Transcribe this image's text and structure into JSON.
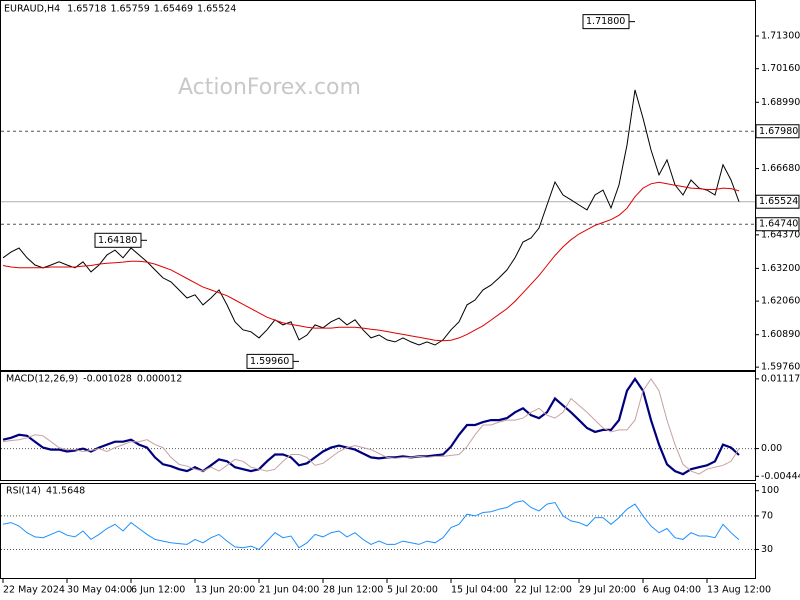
{
  "chart_data": [
    {
      "type": "line",
      "title": "EURAUD,H4",
      "ohlc": [
        1.65718,
        1.65759,
        1.65469,
        1.65524
      ],
      "watermark": "ActionForex.com",
      "xlim": [
        -0.375,
        94
      ],
      "xticks": [
        {
          "value": 0,
          "label": "22 May 2024"
        },
        {
          "value": 8,
          "label": "30 May 04:00"
        },
        {
          "value": 16,
          "label": "6 Jun 12:00"
        },
        {
          "value": 24,
          "label": "13 Jun 20:00"
        },
        {
          "value": 32,
          "label": "21 Jun 04:00"
        },
        {
          "value": 40,
          "label": "28 Jun 12:00"
        },
        {
          "value": 48,
          "label": "5 Jul 20:00"
        },
        {
          "value": 56,
          "label": "15 Jul 04:00"
        },
        {
          "value": 64,
          "label": "22 Jul 12:00"
        },
        {
          "value": 72,
          "label": "29 Jul 20:00"
        },
        {
          "value": 80,
          "label": "6 Aug 04:00"
        },
        {
          "value": 88,
          "label": "13 Aug 12:00"
        }
      ],
      "ylim": [
        1.5966,
        1.72554
      ],
      "yticks": [
        {
          "value": 1.5976,
          "label": "1.59760"
        },
        {
          "value": 1.6089,
          "label": "1.60890"
        },
        {
          "value": 1.6206,
          "label": "1.62060"
        },
        {
          "value": 1.632,
          "label": "1.63200"
        },
        {
          "value": 1.6437,
          "label": "1.64370"
        },
        {
          "value": 1.6668,
          "label": "1.66680"
        },
        {
          "value": 1.6899,
          "label": "1.68990"
        },
        {
          "value": 1.7016,
          "label": "1.70160"
        },
        {
          "value": 1.713,
          "label": "1.71300"
        }
      ],
      "levels": [
        {
          "value": 1.6798,
          "label": "1.67980",
          "style": "dashed"
        },
        {
          "value": 1.6474,
          "label": "1.64740",
          "style": "dashed"
        },
        {
          "value": 1.65524,
          "label": "1.65524",
          "style": "solid"
        }
      ],
      "annotations": [
        {
          "value": 1.718,
          "label": "1.71800"
        },
        {
          "value": 1.6418,
          "label": "1.64180"
        },
        {
          "value": 1.5996,
          "label": "1.59960"
        }
      ],
      "series": [
        {
          "color": "#000000",
          "values": [
            1.6357,
            1.6377,
            1.6391,
            1.6357,
            1.6332,
            1.6322,
            1.6332,
            1.6343,
            1.6332,
            1.6322,
            1.6343,
            1.6308,
            1.6332,
            1.6367,
            1.6384,
            1.6357,
            1.6391,
            1.6367,
            1.6343,
            1.6315,
            1.6287,
            1.6273,
            1.6245,
            1.6217,
            1.6228,
            1.6193,
            1.6217,
            1.6245,
            1.6193,
            1.6134,
            1.6106,
            1.6099,
            1.6078,
            1.6106,
            1.6141,
            1.6123,
            1.6134,
            1.6071,
            1.6088,
            1.6123,
            1.6113,
            1.6134,
            1.6147,
            1.6123,
            1.6141,
            1.6106,
            1.6078,
            1.6088,
            1.6071,
            1.6064,
            1.6078,
            1.6064,
            1.6053,
            1.6064,
            1.6053,
            1.6071,
            1.6106,
            1.6134,
            1.6193,
            1.621,
            1.6245,
            1.6262,
            1.6287,
            1.6315,
            1.6357,
            1.6412,
            1.6426,
            1.6461,
            1.6541,
            1.6621,
            1.6576,
            1.6559,
            1.6541,
            1.6524,
            1.6576,
            1.6593,
            1.6531,
            1.6611,
            1.675,
            1.6942,
            1.6844,
            1.6733,
            1.6646,
            1.6698,
            1.6611,
            1.6576,
            1.6628,
            1.66,
            1.6593,
            1.6576,
            1.6681,
            1.6628,
            1.65524
          ]
        },
        {
          "color": "#e00000",
          "values": [
            1.633,
            1.6325,
            1.6322,
            1.6322,
            1.6322,
            1.6322,
            1.6325,
            1.6325,
            1.6325,
            1.6325,
            1.6328,
            1.633,
            1.6335,
            1.6338,
            1.634,
            1.6342,
            1.6345,
            1.6345,
            1.6342,
            1.6335,
            1.6325,
            1.6315,
            1.63,
            1.6285,
            1.627,
            1.6255,
            1.6245,
            1.6235,
            1.6225,
            1.621,
            1.6195,
            1.618,
            1.6165,
            1.615,
            1.614,
            1.613,
            1.6125,
            1.612,
            1.6115,
            1.6112,
            1.6112,
            1.6112,
            1.6115,
            1.6115,
            1.6115,
            1.6112,
            1.6108,
            1.6105,
            1.61,
            1.6095,
            1.609,
            1.6085,
            1.608,
            1.6075,
            1.607,
            1.6068,
            1.607,
            1.6078,
            1.609,
            1.6105,
            1.612,
            1.614,
            1.616,
            1.618,
            1.6205,
            1.6235,
            1.6265,
            1.6295,
            1.633,
            1.6365,
            1.6395,
            1.642,
            1.644,
            1.6455,
            1.647,
            1.648,
            1.649,
            1.6505,
            1.653,
            1.657,
            1.66,
            1.6615,
            1.662,
            1.6615,
            1.661,
            1.6605,
            1.66,
            1.6598,
            1.6595,
            1.6595,
            1.66,
            1.6598,
            1.659
          ]
        }
      ]
    },
    {
      "type": "line",
      "title": "MACD(12,26,9)",
      "readings": [
        -0.001028,
        1.2e-05
      ],
      "ylim": [
        -0.00504,
        0.01228
      ],
      "yticks": [
        0.011176,
        {
          "value": 0,
          "label": "0.00"
        },
        -0.004449
      ],
      "levels": [
        0
      ],
      "series": [
        {
          "color": "#00007f",
          "width": 2.2,
          "values": [
            0.001417,
            0.001731,
            0.002204,
            0.002046,
            0.001102,
            0.000157,
            -0.000157,
            -0.000157,
            -0.000472,
            -0.000315,
            0,
            -0.000472,
            0.000157,
            0.00063,
            0.001102,
            0.001102,
            0.001417,
            0.00063,
            0.000157,
            -0.001417,
            -0.002518,
            -0.002833,
            -0.003305,
            -0.00362,
            -0.002991,
            -0.00362,
            -0.002676,
            -0.001731,
            -0.002046,
            -0.002991,
            -0.003305,
            -0.00362,
            -0.003305,
            -0.002046,
            -0.000944,
            -0.000944,
            -0.001417,
            -0.002676,
            -0.002361,
            -0.001417,
            -0.000472,
            0.000157,
            0.000472,
            0.000157,
            -0.000157,
            -0.000787,
            -0.001417,
            -0.001574,
            -0.001417,
            -0.001417,
            -0.001259,
            -0.001417,
            -0.001259,
            -0.001259,
            -0.001102,
            -0.000944,
            0.000315,
            0.002204,
            0.003778,
            0.003778,
            0.00425,
            0.004565,
            0.004565,
            0.004879,
            0.005824,
            0.006453,
            0.005352,
            0.004879,
            0.005824,
            0.008027,
            0.006926,
            0.005824,
            0.004565,
            0.003305,
            0.002676,
            0.002991,
            0.002991,
            0.004565,
            0.009287,
            0.011176,
            0.009287,
            0.004565,
            0.00063,
            -0.002518,
            -0.00362,
            -0.004093,
            -0.003305,
            -0.002991,
            -0.002676,
            -0.002046,
            0.00063,
            0.000157,
            -0.001028
          ]
        },
        {
          "color": "#c8a0a0",
          "width": 1,
          "values": [
            0.0011,
            0.0013,
            0.001417,
            0.001731,
            0.002204,
            0.002046,
            0.001102,
            0.000157,
            -0.000157,
            -0.000157,
            -0.000472,
            -0.000315,
            0,
            -0.000472,
            0.000157,
            0.00063,
            0.001102,
            0.001102,
            0.001417,
            0.00063,
            0.000157,
            -0.001417,
            -0.002518,
            -0.002833,
            -0.003305,
            -0.00362,
            -0.002991,
            -0.00362,
            -0.002676,
            -0.001731,
            -0.002046,
            -0.002991,
            -0.003305,
            -0.00362,
            -0.003305,
            -0.002046,
            -0.000944,
            -0.000944,
            -0.001417,
            -0.002676,
            -0.002361,
            -0.001417,
            -0.000472,
            0.000157,
            0.000472,
            0.000157,
            -0.000157,
            -0.000787,
            -0.001417,
            -0.001574,
            -0.001417,
            -0.001417,
            -0.001259,
            -0.001417,
            -0.001259,
            -0.001259,
            -0.001102,
            -0.000944,
            0.000315,
            0.002204,
            0.003778,
            0.003778,
            0.00425,
            0.004565,
            0.004565,
            0.004879,
            0.005824,
            0.006453,
            0.005352,
            0.004879,
            0.005824,
            0.008027,
            0.006926,
            0.005824,
            0.004565,
            0.003305,
            0.002676,
            0.002991,
            0.002991,
            0.004565,
            0.009287,
            0.011176,
            0.009287,
            0.004565,
            0.00063,
            -0.002518,
            -0.00362,
            -0.004093,
            -0.003305,
            -0.002991,
            -0.002676,
            -0.002046,
            1.2e-05
          ]
        }
      ]
    },
    {
      "type": "line",
      "title": "RSI(14)",
      "readings": [
        41.5648
      ],
      "ylim": [
        -4,
        108
      ],
      "yticks": [
        100,
        70,
        30
      ],
      "levels": [
        70,
        30
      ],
      "series": [
        {
          "color": "#1e90ff",
          "width": 1,
          "values": [
            60,
            62,
            58,
            50,
            45,
            44,
            48,
            52,
            47,
            45,
            52,
            42,
            48,
            55,
            60,
            52,
            62,
            55,
            48,
            42,
            40,
            38,
            37,
            36,
            42,
            38,
            44,
            48,
            40,
            33,
            32,
            34,
            30,
            40,
            50,
            44,
            46,
            32,
            38,
            48,
            45,
            50,
            52,
            45,
            50,
            42,
            36,
            40,
            36,
            36,
            40,
            38,
            36,
            40,
            38,
            44,
            56,
            60,
            72,
            70,
            74,
            75,
            78,
            80,
            86,
            88,
            80,
            76,
            84,
            86,
            70,
            64,
            62,
            58,
            68,
            68,
            60,
            68,
            78,
            84,
            70,
            58,
            50,
            55,
            44,
            42,
            50,
            46,
            46,
            44,
            60,
            50,
            41.5648
          ]
        }
      ]
    }
  ]
}
